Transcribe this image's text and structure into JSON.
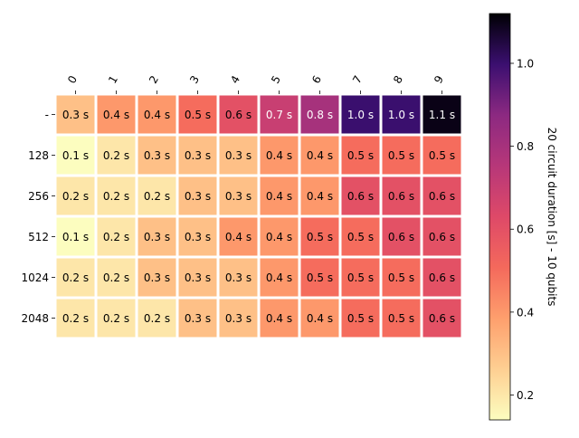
{
  "chart_data": {
    "type": "heatmap",
    "x_tick_labels": [
      "0",
      "1",
      "2",
      "3",
      "4",
      "5",
      "6",
      "7",
      "8",
      "9"
    ],
    "y_tick_labels": [
      "-",
      "128",
      "256",
      "512",
      "1024",
      "2048"
    ],
    "values": [
      [
        0.3,
        0.4,
        0.4,
        0.5,
        0.6,
        0.7,
        0.8,
        1.0,
        1.0,
        1.1
      ],
      [
        0.1,
        0.2,
        0.3,
        0.3,
        0.3,
        0.4,
        0.4,
        0.5,
        0.5,
        0.5
      ],
      [
        0.2,
        0.2,
        0.2,
        0.3,
        0.3,
        0.4,
        0.4,
        0.6,
        0.6,
        0.6
      ],
      [
        0.1,
        0.2,
        0.3,
        0.3,
        0.4,
        0.4,
        0.5,
        0.5,
        0.6,
        0.6
      ],
      [
        0.2,
        0.2,
        0.3,
        0.3,
        0.3,
        0.4,
        0.5,
        0.5,
        0.5,
        0.6
      ],
      [
        0.2,
        0.2,
        0.2,
        0.3,
        0.3,
        0.4,
        0.4,
        0.5,
        0.5,
        0.6
      ]
    ],
    "cell_value_suffix": " s",
    "colormap": "magma_r",
    "color_range": [
      0.14,
      1.12
    ],
    "colorbar": {
      "label": "20 circuit duration [s] - 10 qubits",
      "ticks": [
        "0.2",
        "0.4",
        "0.6",
        "0.8",
        "1.0"
      ],
      "tick_values": [
        0.2,
        0.4,
        0.6,
        0.8,
        1.0
      ],
      "position": "right"
    },
    "x_tick_position": "top",
    "x_tick_rotation_deg": -60,
    "grid": false
  }
}
